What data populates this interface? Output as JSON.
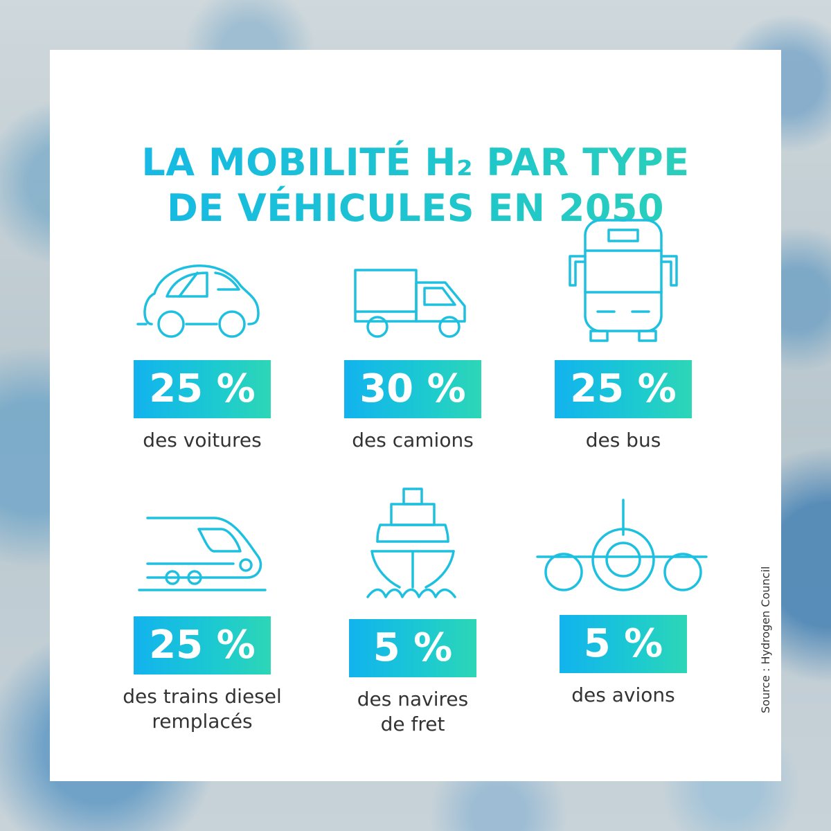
{
  "title": {
    "line1": "LA MOBILITÉ H₂ PAR TYPE",
    "line2": "DE VÉHICULES EN 2050"
  },
  "colors": {
    "accent_start": "#12b3ee",
    "accent_end": "#2dd6b6",
    "icon_stroke": "#1ec0e0",
    "caption_text": "#333333"
  },
  "items": [
    {
      "icon": "car-icon",
      "value": "25 %",
      "caption_line1": "des voitures",
      "caption_line2": ""
    },
    {
      "icon": "truck-icon",
      "value": "30 %",
      "caption_line1": "des camions",
      "caption_line2": ""
    },
    {
      "icon": "bus-icon",
      "value": "25 %",
      "caption_line1": "des bus",
      "caption_line2": ""
    },
    {
      "icon": "train-icon",
      "value": "25 %",
      "caption_line1": "des trains diesel",
      "caption_line2": "remplacés"
    },
    {
      "icon": "ship-icon",
      "value": "5 %",
      "caption_line1": "des navires",
      "caption_line2": "de fret"
    },
    {
      "icon": "airplane-icon",
      "value": "5 %",
      "caption_line1": "des avions",
      "caption_line2": ""
    }
  ],
  "source": "Source : Hydrogen Council"
}
